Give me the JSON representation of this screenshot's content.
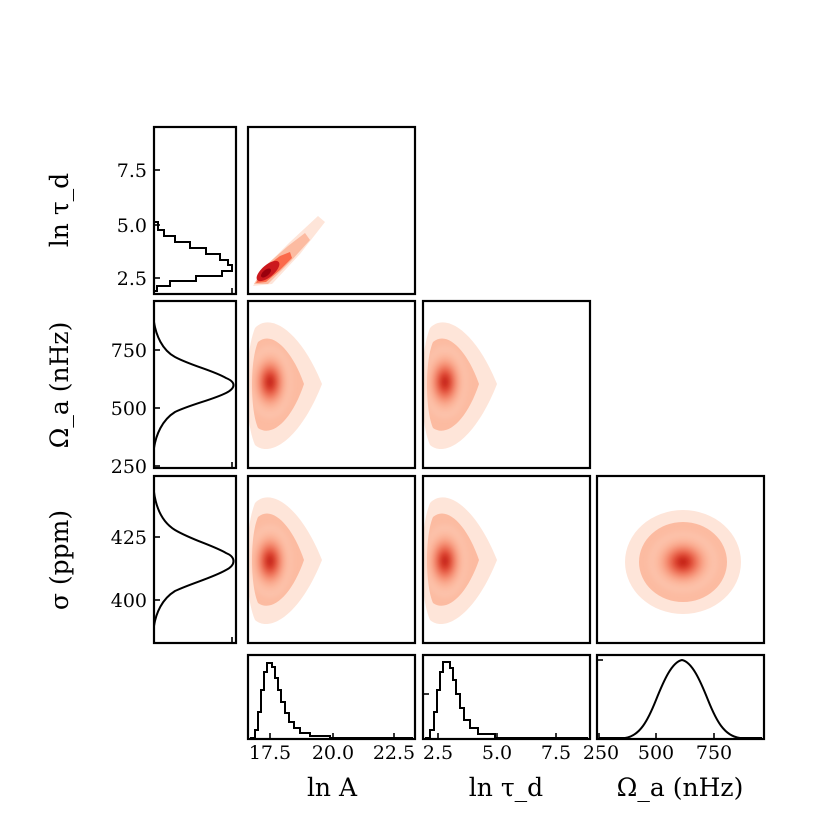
{
  "chart_data": {
    "type": "corner",
    "title": "",
    "axis_labels": {
      "lnA": "ln A",
      "ln_tau_d": "ln τ_d",
      "omega_a": "Ω_a (nHz)",
      "sigma": "σ (ppm)"
    },
    "x_ticks": {
      "lnA": [
        "17.5",
        "20.0",
        "22.5"
      ],
      "ln_tau_d": [
        "2.5",
        "5.0",
        "7.5"
      ],
      "omega_a": [
        "250",
        "500",
        "750"
      ]
    },
    "y_ticks": {
      "ln_tau_d": [
        "2.5",
        "5.0",
        "7.5"
      ],
      "omega_a": [
        "250",
        "500",
        "750"
      ],
      "sigma": [
        "400",
        "425"
      ]
    },
    "ranges": {
      "lnA": [
        15.9,
        23.6
      ],
      "ln_tau_d": [
        1.9,
        9.4
      ],
      "omega_a": [
        240,
        950
      ],
      "sigma": [
        385,
        445
      ]
    },
    "marginals": [
      {
        "parameter": "ln A",
        "peak": 16.9,
        "spread": 0.5,
        "skew": "right"
      },
      {
        "parameter": "ln τ_d",
        "peak": 2.85,
        "spread": 0.45,
        "skew": "right"
      },
      {
        "parameter": "Ω_a (nHz)",
        "peak": 610,
        "spread": 95,
        "skew": "none"
      },
      {
        "parameter": "σ (ppm)",
        "peak": 415,
        "spread": 9,
        "skew": "none"
      }
    ],
    "densities_2d": [
      {
        "x": "ln A",
        "y": "ln τ_d",
        "center": [
          16.9,
          2.8
        ],
        "correlation": "strong positive"
      },
      {
        "x": "ln A",
        "y": "Ω_a (nHz)",
        "center": [
          16.9,
          610
        ]
      },
      {
        "x": "ln τ_d",
        "y": "Ω_a (nHz)",
        "center": [
          2.8,
          610
        ]
      },
      {
        "x": "ln A",
        "y": "σ (ppm)",
        "center": [
          16.9,
          415
        ]
      },
      {
        "x": "ln τ_d",
        "y": "σ (ppm)",
        "center": [
          2.8,
          415
        ]
      },
      {
        "x": "Ω_a (nHz)",
        "y": "σ (ppm)",
        "center": [
          610,
          415
        ]
      }
    ],
    "colors": {
      "density": "#d7301f",
      "line": "#000000"
    }
  }
}
